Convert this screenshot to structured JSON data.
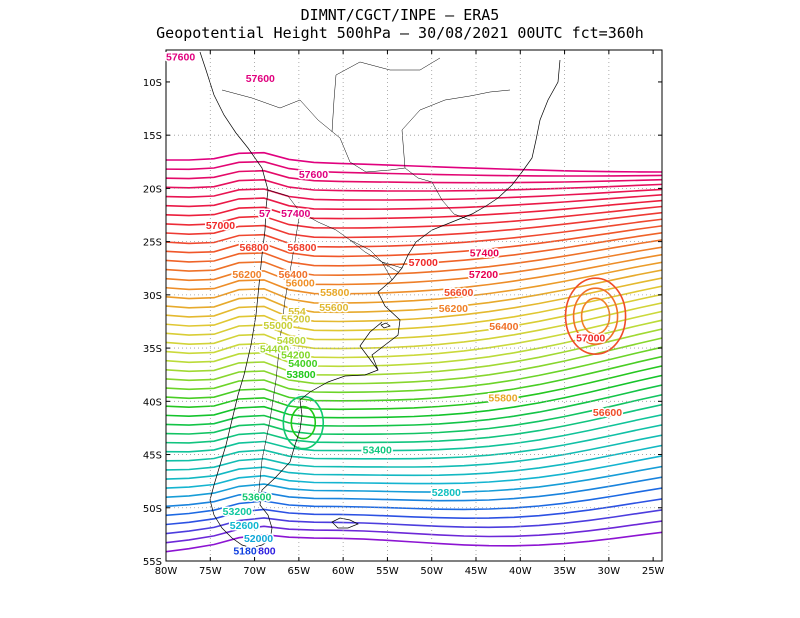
{
  "title": {
    "line1": "DIMNT/CGCT/INPE –  ERA5",
    "line2": "Geopotential Height 500hPa –  30/08/2021 00UTC fct=360h"
  },
  "axes": {
    "lat_ticks": [
      "10S",
      "15S",
      "20S",
      "25S",
      "30S",
      "35S",
      "40S",
      "45S",
      "50S",
      "55S"
    ],
    "lon_ticks": [
      "80W",
      "75W",
      "70W",
      "65W",
      "60W",
      "55W",
      "50W",
      "45W",
      "40W",
      "35W",
      "30W",
      "25W"
    ],
    "lat_range_deg": [
      -55,
      -7
    ],
    "lon_range_deg": [
      -80,
      -24
    ]
  },
  "contour_labels": [
    {
      "text": "57600",
      "lon": -80,
      "lat": -8,
      "color": "#e0007e"
    },
    {
      "text": "57600",
      "lon": -71,
      "lat": -10,
      "color": "#e0007e"
    },
    {
      "text": "57600",
      "lon": -65,
      "lat": -19,
      "color": "#e0007e"
    },
    {
      "text": "57400",
      "lon": -67,
      "lat": -22.7,
      "color": "#e0007e"
    },
    {
      "text": "57",
      "lon": -69.5,
      "lat": -22.7,
      "color": "#e0007e"
    },
    {
      "text": "57400",
      "lon": -45.7,
      "lat": -26.4,
      "color": "#e80050"
    },
    {
      "text": "57200",
      "lon": -45.8,
      "lat": -28.4,
      "color": "#e80050"
    },
    {
      "text": "57000",
      "lon": -75.5,
      "lat": -23.8,
      "color": "#f02828"
    },
    {
      "text": "57000",
      "lon": -52.6,
      "lat": -27.3,
      "color": "#f02828"
    },
    {
      "text": "57000",
      "lon": -33.7,
      "lat": -34.4,
      "color": "#f02828"
    },
    {
      "text": "56800",
      "lon": -71.7,
      "lat": -25.9,
      "color": "#f03c28"
    },
    {
      "text": "56800",
      "lon": -66.3,
      "lat": -25.9,
      "color": "#f03c28"
    },
    {
      "text": "56600",
      "lon": -48.6,
      "lat": -30.1,
      "color": "#f04c28"
    },
    {
      "text": "56600",
      "lon": -31.8,
      "lat": -41.4,
      "color": "#f04c28"
    },
    {
      "text": "56400",
      "lon": -67.3,
      "lat": -28.4,
      "color": "#f07028"
    },
    {
      "text": "56400",
      "lon": -43.5,
      "lat": -33.3,
      "color": "#f07028"
    },
    {
      "text": "56200",
      "lon": -72.5,
      "lat": -28.4,
      "color": "#f08028"
    },
    {
      "text": "56200",
      "lon": -49.2,
      "lat": -31.6,
      "color": "#f08028"
    },
    {
      "text": "56000",
      "lon": -66.5,
      "lat": -29.2,
      "color": "#f09028"
    },
    {
      "text": "55800",
      "lon": -62.6,
      "lat": -30.1,
      "color": "#e8a828"
    },
    {
      "text": "55800",
      "lon": -43.6,
      "lat": -40.0,
      "color": "#e8a828"
    },
    {
      "text": "55600",
      "lon": -62.7,
      "lat": -31.5,
      "color": "#e0b830"
    },
    {
      "text": "554",
      "lon": -66.2,
      "lat": -31.9,
      "color": "#d8c030"
    },
    {
      "text": "55200",
      "lon": -67.0,
      "lat": -32.6,
      "color": "#d0c838"
    },
    {
      "text": "55000",
      "lon": -69.0,
      "lat": -33.2,
      "color": "#c8d038"
    },
    {
      "text": "54800",
      "lon": -67.5,
      "lat": -34.6,
      "color": "#b8d838"
    },
    {
      "text": "54400",
      "lon": -69.4,
      "lat": -35.4,
      "color": "#a0d830"
    },
    {
      "text": "54200",
      "lon": -67.0,
      "lat": -36.0,
      "color": "#80d828"
    },
    {
      "text": "54000",
      "lon": -66.2,
      "lat": -36.8,
      "color": "#40d020"
    },
    {
      "text": "53800",
      "lon": -66.4,
      "lat": -37.8,
      "color": "#20c818"
    },
    {
      "text": "53400",
      "lon": -57.8,
      "lat": -44.9,
      "color": "#10c880"
    },
    {
      "text": "53600",
      "lon": -71.4,
      "lat": -49.3,
      "color": "#10c870"
    },
    {
      "text": "53200",
      "lon": -73.6,
      "lat": -50.7,
      "color": "#10c8a0"
    },
    {
      "text": "52800",
      "lon": -50.0,
      "lat": -48.9,
      "color": "#10c0c0"
    },
    {
      "text": "52600",
      "lon": -72.8,
      "lat": -52.0,
      "color": "#10b8d0"
    },
    {
      "text": "52000",
      "lon": -71.2,
      "lat": -53.2,
      "color": "#10a8d8"
    },
    {
      "text": "51800",
      "lon": -72.4,
      "lat": -54.4,
      "color": "#1040e0"
    },
    {
      "text": "800",
      "lon": -69.6,
      "lat": -54.4,
      "color": "#3020e0"
    }
  ]
}
